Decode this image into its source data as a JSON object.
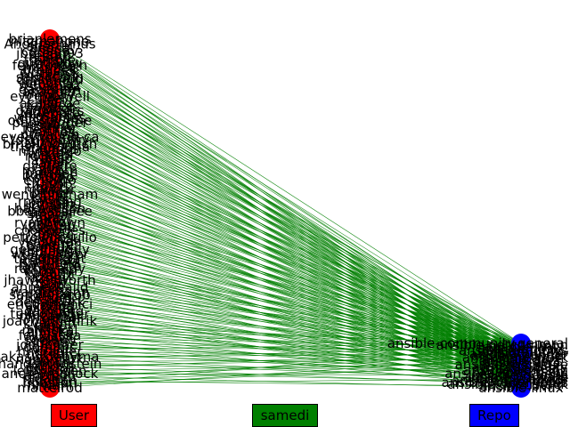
{
  "legend": {
    "user_label": "User",
    "user_color": "#ff0000",
    "edge_label": "samedi",
    "edge_color": "#008000",
    "repo_label": "Repo",
    "repo_color": "#0000ff"
  },
  "users": [
    "brianlemens",
    "nitzmahone",
    "Andersonmus",
    "shertel",
    "bcoca",
    "cdhagav",
    "jborean93",
    "resmo",
    "goneri",
    "tremble",
    "gundalow",
    "felixfontein",
    "mkrizek",
    "gregdek",
    "cidrblock",
    "mattclay",
    "samccann",
    "dmsimard",
    "emonty",
    "webknjaz",
    "ssbarnea",
    "ganeshrn",
    "abadger",
    "mrwt57",
    "eyemaxwell",
    "sivel",
    "jillr",
    "akasurde",
    "felixlee",
    "ansibot",
    "dagwieers",
    "tadeboro",
    "Akasurde",
    "willthames",
    "odyssey4me",
    "pabelanger",
    "relrod",
    "jctanner",
    "heytrav",
    "Qalthos",
    "privateip",
    "evelynhund-ca",
    "toshywoshy",
    "rsmb4n",
    "bmalynovytch",
    "trishnaguha",
    "thaumos",
    "mvelasco",
    "alikins",
    "rockaut",
    "ryansb",
    "tima",
    "sarah",
    "dvaflare",
    "yuji",
    "markorn",
    "mnaser",
    "bortolhe",
    "kstudio",
    "emilyho",
    "xhou",
    "navin",
    "tima22",
    "mandar",
    "pilou-",
    "wenottingham",
    "kallat",
    "larsks",
    "rmanning",
    "jctmain",
    "nrwahl2",
    "haksonson",
    "bbaassssiiee",
    "smorin",
    "fiewel",
    "zaxayl",
    "sirik",
    "ryanbrown",
    "dpatel",
    "ikasumi",
    "coopcodes",
    "rawtaz",
    "lars",
    "petrowdesullo",
    "kendrick",
    "ykasunda",
    "chikere",
    "bantuk",
    "geerlingguy",
    "kodiakist",
    "whiteclover",
    "yadnesh",
    "tekknokrat",
    "calfonso",
    "hackfield",
    "lavagetto",
    "rathyvaidy",
    "verminn",
    "kadarni",
    "ntrautt",
    "azdev",
    "jhawkesworth",
    "zn2n",
    "lapp",
    "ahmedsajid",
    "latkoz",
    "wardemann",
    "sandrojacob",
    "kevpm",
    "nestorli",
    "deesebark",
    "ericdomenici",
    "aknogo",
    "wiselka",
    "adamgerg",
    "tuxcolander",
    "pmcamaj",
    "wrokthl",
    "joachimhenrik",
    "kvalenti",
    "alex",
    "sluther",
    "mhaskal",
    "ainiska",
    "felixlaska",
    "jdaoust",
    "sgeleno",
    "lukas",
    "joelfenner",
    "dominic",
    "vmsu",
    "hhkramer",
    "natvan",
    "akasurdebyma",
    "ngngmark",
    "ramlin",
    "handemonstein",
    "carlosn",
    "gtaylor",
    "leifmadsen",
    "andrewpollock",
    "anolson",
    "tdalen",
    "fangtian",
    "hbaston",
    "nrwahl",
    "mattelrod"
  ],
  "repos": [
    "ansible-community.general",
    "ansible.netcommon",
    "ansible-lint",
    "ansible.posix",
    "ansible.windows",
    "ansible.utils",
    "ansible-builder",
    "ansible-runner",
    "ansible.network",
    "ansible.awx",
    "ansible-docs",
    "ansible.aws",
    "ansible-molecule",
    "ansible.galaxy",
    "ansible-test",
    "ansible.amazon",
    "ansible.cisco",
    "ansible-collections",
    "ansible.google",
    "ansible.vmware",
    "ansible.azure",
    "ansible-navigator",
    "ansible.kubernetes",
    "ansible.openstack",
    "ansible.ovirt",
    "ansible-linux"
  ]
}
